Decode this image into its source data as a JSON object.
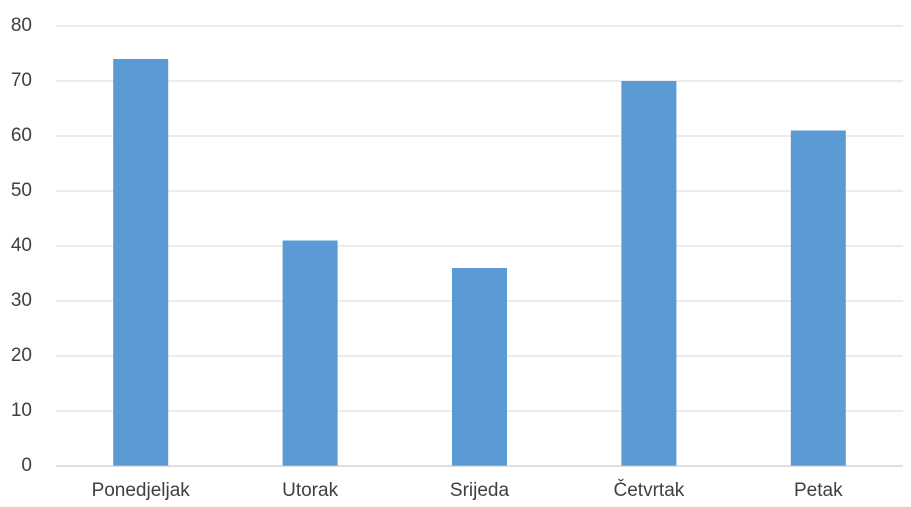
{
  "chart_data": {
    "type": "bar",
    "title": "",
    "xlabel": "",
    "ylabel": "",
    "categories": [
      "Ponedjeljak",
      "Utorak",
      "Srijeda",
      "Četvrtak",
      "Petak"
    ],
    "values": [
      74,
      41,
      36,
      70,
      61
    ],
    "ylim": [
      0,
      80
    ],
    "yticks": [
      "0",
      "10",
      "20",
      "30",
      "40",
      "50",
      "60",
      "70",
      "80"
    ],
    "grid": true,
    "legend": "none",
    "colors": {
      "bar": "#5B9BD5",
      "grid": "#D9D9D9",
      "axis": "#BFBFBF",
      "text": "#404040"
    }
  }
}
